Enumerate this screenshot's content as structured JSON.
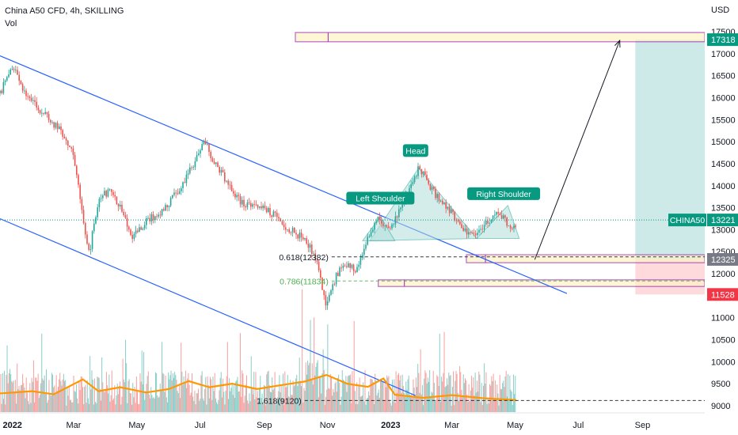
{
  "header": {
    "title": "China A50 CFD, 4h, SKILLING",
    "volume_label": "Vol"
  },
  "colors": {
    "up": "#26a69a",
    "down": "#ef5350",
    "channel": "#2962ff",
    "zone_border": "#9c27b0",
    "zone_fill": "#fff3c4",
    "target_fill": "#b2dfdb",
    "stop_fill": "#ffcdd2",
    "pattern_fill": "#b2dfdb",
    "pattern_stroke": "#26a69a",
    "vol_ma": "#ff9800",
    "last_price": "#089981"
  },
  "chart_data": {
    "type": "candlestick",
    "currency_label": "USD",
    "y_ticks": [
      9000,
      9500,
      10000,
      10500,
      11000,
      11500,
      12000,
      12500,
      13000,
      13500,
      14000,
      14500,
      15000,
      15500,
      16000,
      16500,
      17000,
      17500
    ],
    "ylim": [
      8960,
      17700
    ],
    "x_ticks": [
      {
        "label": "2022",
        "date": "2022-01-01"
      },
      {
        "label": "Mar",
        "date": "2022-03-01"
      },
      {
        "label": "May",
        "date": "2022-05-01"
      },
      {
        "label": "Jul",
        "date": "2022-07-01"
      },
      {
        "label": "Sep",
        "date": "2022-09-01"
      },
      {
        "label": "Nov",
        "date": "2022-11-01"
      },
      {
        "label": "2023",
        "date": "2023-01-01"
      },
      {
        "label": "Mar",
        "date": "2023-03-01"
      },
      {
        "label": "May",
        "date": "2023-05-01"
      },
      {
        "label": "Jul",
        "date": "2023-07-01"
      },
      {
        "label": "Sep",
        "date": "2023-09-01"
      }
    ],
    "price_path": [
      [
        "2021-12-20",
        16100
      ],
      [
        "2022-01-01",
        16700
      ],
      [
        "2022-01-15",
        16000
      ],
      [
        "2022-02-01",
        15600
      ],
      [
        "2022-02-15",
        15300
      ],
      [
        "2022-02-28",
        14800
      ],
      [
        "2022-03-08",
        13600
      ],
      [
        "2022-03-16",
        12450
      ],
      [
        "2022-03-25",
        13700
      ],
      [
        "2022-04-05",
        13900
      ],
      [
        "2022-04-15",
        13500
      ],
      [
        "2022-04-27",
        12850
      ],
      [
        "2022-05-10",
        13200
      ],
      [
        "2022-05-25",
        13400
      ],
      [
        "2022-06-10",
        13900
      ],
      [
        "2022-06-25",
        14500
      ],
      [
        "2022-07-05",
        15050
      ],
      [
        "2022-07-15",
        14500
      ],
      [
        "2022-07-28",
        14050
      ],
      [
        "2022-08-10",
        13600
      ],
      [
        "2022-08-25",
        13550
      ],
      [
        "2022-09-10",
        13350
      ],
      [
        "2022-09-25",
        13000
      ],
      [
        "2022-10-10",
        12800
      ],
      [
        "2022-10-20",
        12400
      ],
      [
        "2022-10-31",
        11250
      ],
      [
        "2022-11-10",
        12000
      ],
      [
        "2022-11-20",
        12250
      ],
      [
        "2022-11-28",
        12050
      ],
      [
        "2022-12-10",
        12800
      ],
      [
        "2022-12-20",
        13300
      ],
      [
        "2022-12-30",
        12950
      ],
      [
        "2023-01-10",
        13500
      ],
      [
        "2023-01-20",
        14000
      ],
      [
        "2023-01-28",
        14400
      ],
      [
        "2023-02-08",
        14000
      ],
      [
        "2023-02-18",
        13600
      ],
      [
        "2023-03-01",
        13400
      ],
      [
        "2023-03-12",
        13000
      ],
      [
        "2023-03-25",
        12900
      ],
      [
        "2023-04-05",
        13200
      ],
      [
        "2023-04-15",
        13400
      ],
      [
        "2023-04-25",
        13100
      ],
      [
        "2023-05-02",
        13000
      ]
    ],
    "volume_ma_path": [
      [
        "2021-12-20",
        9280
      ],
      [
        "2022-01-20",
        9330
      ],
      [
        "2022-02-10",
        9260
      ],
      [
        "2022-03-10",
        9600
      ],
      [
        "2022-03-25",
        9330
      ],
      [
        "2022-04-15",
        9420
      ],
      [
        "2022-05-10",
        9300
      ],
      [
        "2022-06-01",
        9380
      ],
      [
        "2022-06-20",
        9560
      ],
      [
        "2022-07-10",
        9420
      ],
      [
        "2022-08-01",
        9500
      ],
      [
        "2022-08-25",
        9380
      ],
      [
        "2022-09-15",
        9460
      ],
      [
        "2022-10-10",
        9550
      ],
      [
        "2022-10-31",
        9700
      ],
      [
        "2022-11-20",
        9500
      ],
      [
        "2022-12-10",
        9430
      ],
      [
        "2022-12-25",
        9620
      ],
      [
        "2023-01-05",
        9250
      ],
      [
        "2023-02-01",
        9180
      ],
      [
        "2023-03-01",
        9240
      ],
      [
        "2023-04-01",
        9170
      ],
      [
        "2023-05-02",
        9130
      ]
    ],
    "channel_lines": [
      {
        "name": "channel-upper",
        "from": [
          "2021-12-20",
          16950
        ],
        "to": [
          "2023-06-20",
          11550
        ]
      },
      {
        "name": "channel-lower",
        "from": [
          "2021-12-20",
          13250
        ],
        "to": [
          "2023-01-25",
          9230
        ]
      }
    ],
    "pattern": {
      "points": [
        [
          "2022-12-12",
          12750
        ],
        [
          "2023-01-28",
          14400
        ],
        [
          "2023-03-25",
          12800
        ]
      ],
      "left_shoulder": [
        [
          "2022-12-05",
          12750
        ],
        [
          "2022-12-22",
          13300
        ],
        [
          "2023-01-05",
          12750
        ]
      ],
      "right_shoulder": [
        [
          "2023-03-25",
          12800
        ],
        [
          "2023-04-24",
          13550
        ],
        [
          "2023-05-05",
          12800
        ]
      ]
    },
    "labels": [
      {
        "name": "label-left-shoulder",
        "text": "Left Shoulder",
        "date": "2022-12-22",
        "value": 13700
      },
      {
        "name": "label-head",
        "text": "Head",
        "date": "2023-01-25",
        "value": 14780
      },
      {
        "name": "label-right-shoulder",
        "text": "Right Shoulder",
        "date": "2023-04-20",
        "value": 13800
      }
    ],
    "fib_levels": [
      {
        "name": "fib-0618",
        "text": "0.618(12382)",
        "value": 12382,
        "color": "#131722"
      },
      {
        "name": "fib-0786",
        "text": "0.786(11834)",
        "value": 11834,
        "color": "#4caf50"
      },
      {
        "name": "fib-1618",
        "text": "1.618(9120)",
        "value": 9120,
        "color": "#131722"
      }
    ],
    "zones": [
      {
        "name": "zone-target",
        "from": "2022-10-01",
        "to": "2023-10-31",
        "low": 17270,
        "high": 17480
      },
      {
        "name": "zone-support",
        "from": "2023-03-15",
        "to": "2023-10-31",
        "low": 12250,
        "high": 12430
      },
      {
        "name": "zone-lower",
        "from": "2022-12-20",
        "to": "2023-10-31",
        "low": 11710,
        "high": 11860
      }
    ],
    "projection_arrow": {
      "from": [
        "2023-05-20",
        12320
      ],
      "to": [
        "2023-08-10",
        17300
      ]
    },
    "position": {
      "from": "2023-08-25",
      "to": "2023-10-31",
      "entry": 12325,
      "target": 17318,
      "stop": 11528
    },
    "price_tags": [
      {
        "name": "tag-target",
        "text": "17318",
        "value": 17318,
        "color": "#089981"
      },
      {
        "name": "tag-current",
        "text": "13221",
        "value": 13221,
        "color": "#089981",
        "symbol": "CHINA50"
      },
      {
        "name": "tag-entry",
        "text": "12325",
        "value": 12325,
        "color": "#787b86"
      },
      {
        "name": "tag-stop",
        "text": "11528",
        "value": 11528,
        "color": "#f23645"
      }
    ],
    "current_price": 13221,
    "volume_baseline_value": 9120,
    "data_end": "2023-05-02"
  }
}
